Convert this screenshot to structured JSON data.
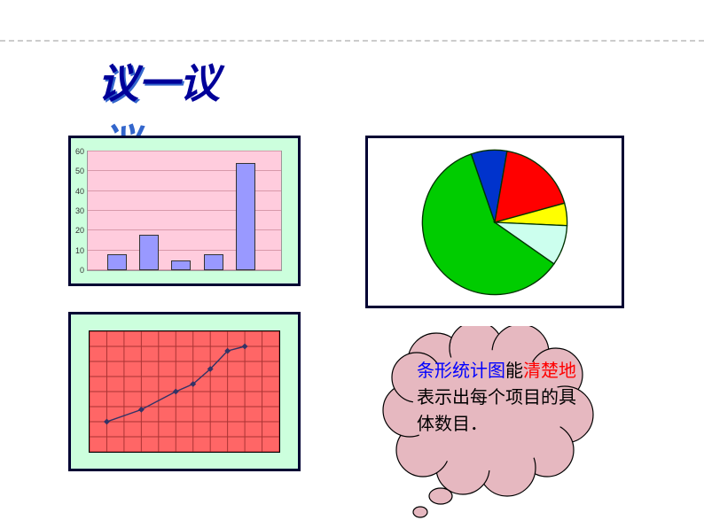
{
  "title": "议一议",
  "dotted_border_color": "#cccccc",
  "bar_chart": {
    "type": "bar",
    "box_bg": "#ccffdd",
    "plot_bg": "#ffccdd",
    "border_color": "#000033",
    "ylim": [
      0,
      60
    ],
    "ytick_step": 10,
    "ytick_labels": [
      "0",
      "10",
      "20",
      "30",
      "40",
      "50",
      "60"
    ],
    "values": [
      8,
      18,
      5,
      8,
      54
    ],
    "bar_color": "#9999ff",
    "bar_border": "#333333",
    "label_fontsize": 9
  },
  "line_chart": {
    "type": "line",
    "box_bg": "#ccffdd",
    "plot_bg": "#ff6666",
    "border_color": "#000033",
    "grid_color": "#aa3333",
    "grid_cols": 11,
    "grid_rows": 8,
    "points": [
      {
        "x": 1,
        "y": 6
      },
      {
        "x": 3,
        "y": 5.2
      },
      {
        "x": 5,
        "y": 4
      },
      {
        "x": 6,
        "y": 3.5
      },
      {
        "x": 7,
        "y": 2.5
      },
      {
        "x": 8,
        "y": 1.3
      },
      {
        "x": 9,
        "y": 1
      }
    ],
    "line_color": "#333366",
    "marker_color": "#333366"
  },
  "pie_chart": {
    "type": "pie",
    "box_bg": "#ffffff",
    "border_color": "#000033",
    "slices": [
      {
        "label": "green",
        "value": 60,
        "color": "#00cc00"
      },
      {
        "label": "blue",
        "value": 8,
        "color": "#0033cc"
      },
      {
        "label": "red",
        "value": 18,
        "color": "#ff0000"
      },
      {
        "label": "yellow",
        "value": 5,
        "color": "#ffff00"
      },
      {
        "label": "cyan",
        "value": 9,
        "color": "#ccffee"
      }
    ],
    "stroke_color": "#003300"
  },
  "cloud": {
    "fill": "#e6b8c0",
    "stroke": "#000000",
    "text_segments": [
      {
        "text": "条形统计图",
        "color": "#0000ff"
      },
      {
        "text": "能",
        "color": "#000000"
      },
      {
        "text": "清楚地",
        "color": "#ff0000"
      },
      {
        "text": "表示出每个项目的具  体数目．",
        "color": "#000000"
      }
    ],
    "fontsize": 20
  }
}
